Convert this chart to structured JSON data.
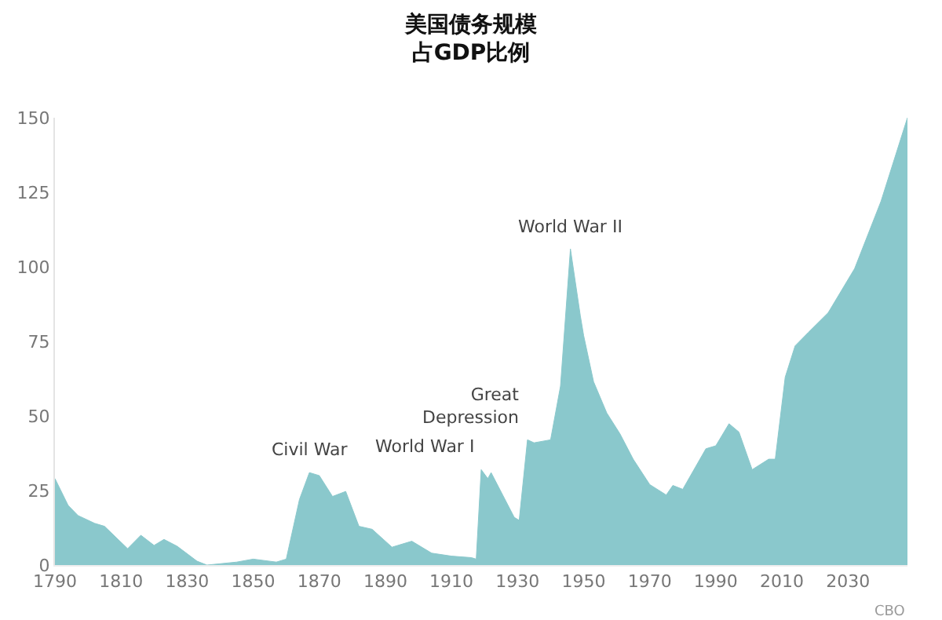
{
  "chart_data": {
    "type": "area",
    "title": "美国债务规模",
    "subtitle": "占GDP比例",
    "x": [
      1790,
      1794,
      1797,
      1802,
      1805,
      1812,
      1816,
      1820,
      1823,
      1827,
      1833,
      1836,
      1845,
      1850,
      1857,
      1860,
      1864,
      1867,
      1870,
      1874,
      1878,
      1882,
      1886,
      1892,
      1898,
      1904,
      1910,
      1916,
      1917.5,
      1919,
      1921,
      1922,
      1929,
      1930.5,
      1933,
      1935,
      1940,
      1943,
      1946,
      1949,
      1950,
      1953,
      1957,
      1961,
      1965,
      1970,
      1975,
      1977,
      1980,
      1987,
      1990,
      1994,
      1997,
      2001,
      2006,
      2008,
      2011,
      2014,
      2018,
      2024,
      2032,
      2040,
      2048
    ],
    "series": [
      {
        "color": "#8ac8cc",
        "values": [
          29,
          20,
          16.6,
          14,
          13,
          5.5,
          10,
          6.6,
          8.6,
          6.3,
          1.3,
          0,
          1,
          2,
          1,
          2,
          22,
          31,
          30,
          23,
          24.7,
          13,
          12,
          6,
          8,
          4,
          3,
          2.5,
          2,
          32,
          29,
          31,
          16,
          15,
          42,
          41,
          42,
          60,
          106,
          83.6,
          77,
          61.5,
          51,
          44,
          35.5,
          27,
          23.5,
          26.7,
          25.4,
          39,
          40,
          47.4,
          44.6,
          32,
          35.5,
          35.5,
          63,
          73.5,
          78,
          84.6,
          99.4,
          122,
          150
        ]
      }
    ],
    "xlim": [
      1790,
      2048
    ],
    "xticks": [
      1790,
      1810,
      1830,
      1850,
      1870,
      1890,
      1910,
      1930,
      1950,
      1970,
      1990,
      2010,
      2030
    ],
    "ylim": [
      0,
      150
    ],
    "yticks": [
      0,
      25,
      50,
      75,
      100,
      125,
      150
    ],
    "annotations": [
      {
        "text": "Civil War",
        "x": 1867,
        "y": 31
      },
      {
        "text": "World War I",
        "x": 1919,
        "y": 32
      },
      {
        "text": "Great\nDepression",
        "x": 1933,
        "y": 42
      },
      {
        "text": "World War II",
        "x": 1946,
        "y": 106
      },
      "CBO"
    ]
  }
}
